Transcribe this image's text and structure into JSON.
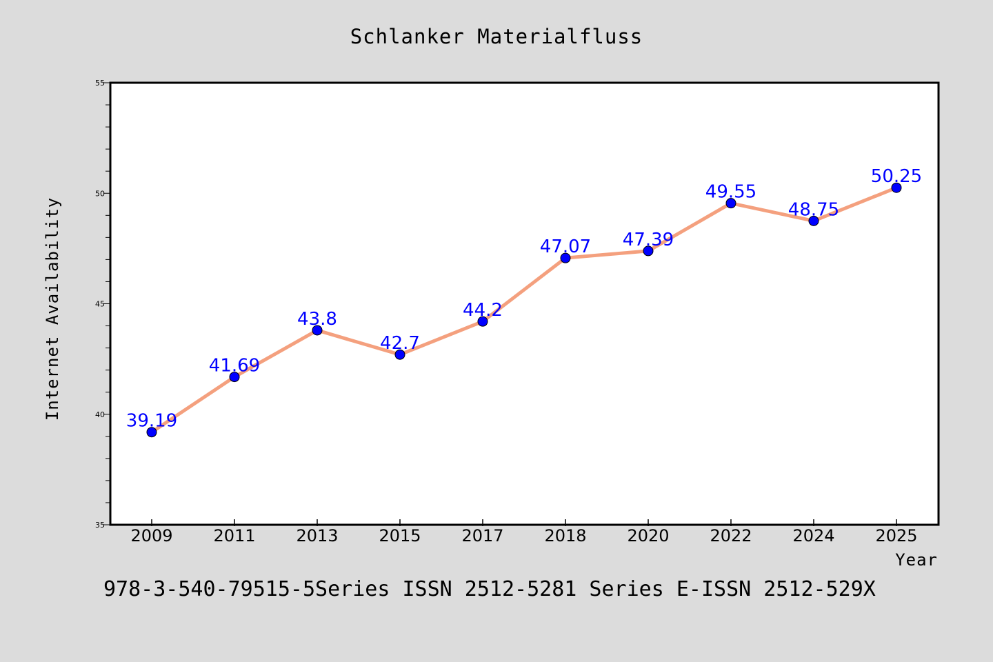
{
  "chart_data": {
    "type": "line",
    "title": "Schlanker Materialfluss",
    "xlabel": "Year",
    "ylabel": "Internet Availability",
    "categories": [
      "2009",
      "2011",
      "2013",
      "2015",
      "2017",
      "2018",
      "2020",
      "2022",
      "2024",
      "2025"
    ],
    "series": [
      {
        "values": [
          39.19,
          41.69,
          43.8,
          42.7,
          44.2,
          47.07,
          47.39,
          49.55,
          48.75,
          50.25
        ],
        "labels": [
          "39.19",
          "41.69",
          "43.8",
          "42.7",
          "44.2",
          "47.07",
          "47.39",
          "49.55",
          "48.75",
          "50.25"
        ],
        "line_color": "#f4a07e",
        "marker_color": "#0000ff"
      }
    ],
    "ylim": [
      35,
      55
    ],
    "yticks": [
      "35",
      "40",
      "45",
      "50",
      "55"
    ],
    "grid": false,
    "legend": "none"
  },
  "footer": {
    "text": "978-3-540-79515-5Series ISSN 2512-5281 Series E-ISSN 2512-529X"
  },
  "colors": {
    "background": "#dcdcdc",
    "plot_background": "#ffffff",
    "line": "#f4a07e",
    "marker": "#0000ff",
    "data_label": "#0000ff"
  }
}
